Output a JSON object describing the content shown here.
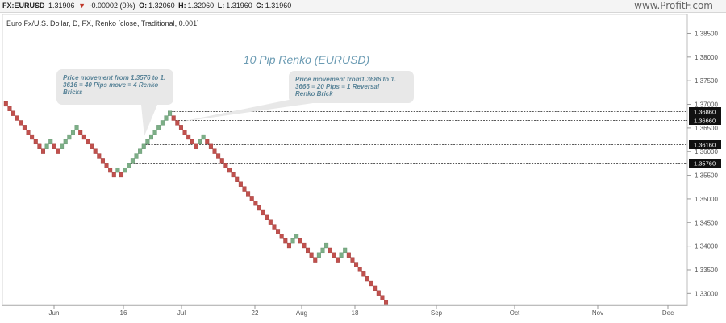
{
  "header": {
    "symbol": "FX:EURUSD",
    "last": "1.31906",
    "change": "-0.00002 (0%)",
    "open_label": "O:",
    "open": "1.32060",
    "high_label": "H:",
    "high": "1.32060",
    "low_label": "L:",
    "low": "1.31960",
    "close_label": "C:",
    "close": "1.31960",
    "watermark": "www.ProfitF.com"
  },
  "chart_data": {
    "type": "renko",
    "subtitle": "Euro Fx/U.S. Dollar, D, FX, Renko [close, Traditional, 0.001]",
    "title": "10 Pip Renko (EURUSD)",
    "brick_size": 0.001,
    "up_color": "#7cae86",
    "down_color": "#c0504d",
    "ylim": [
      1.3275,
      1.389
    ],
    "y_ticks": [
      "1.38500",
      "1.38000",
      "1.37500",
      "1.37000",
      "1.36500",
      "1.36000",
      "1.35500",
      "1.35000",
      "1.34500",
      "1.34000",
      "1.33500",
      "1.33000"
    ],
    "x_ticks": [
      "Jun",
      "16",
      "Jul",
      "22",
      "Aug",
      "18",
      "Sep",
      "Oct",
      "Nov",
      "Dec"
    ],
    "bricks": [
      {
        "dir": "down",
        "top": 1.3706
      },
      {
        "dir": "down",
        "top": 1.3696
      },
      {
        "dir": "down",
        "top": 1.3686
      },
      {
        "dir": "down",
        "top": 1.3676
      },
      {
        "dir": "down",
        "top": 1.3666
      },
      {
        "dir": "down",
        "top": 1.3656
      },
      {
        "dir": "down",
        "top": 1.3646
      },
      {
        "dir": "down",
        "top": 1.3636
      },
      {
        "dir": "down",
        "top": 1.3626
      },
      {
        "dir": "down",
        "top": 1.3616
      },
      {
        "dir": "down",
        "top": 1.3606
      },
      {
        "dir": "up",
        "top": 1.3616
      },
      {
        "dir": "up",
        "top": 1.3626
      },
      {
        "dir": "down",
        "top": 1.3616
      },
      {
        "dir": "down",
        "top": 1.3606
      },
      {
        "dir": "up",
        "top": 1.3616
      },
      {
        "dir": "up",
        "top": 1.3626
      },
      {
        "dir": "up",
        "top": 1.3636
      },
      {
        "dir": "up",
        "top": 1.3646
      },
      {
        "dir": "up",
        "top": 1.3656
      },
      {
        "dir": "down",
        "top": 1.3646
      },
      {
        "dir": "down",
        "top": 1.3636
      },
      {
        "dir": "down",
        "top": 1.3626
      },
      {
        "dir": "down",
        "top": 1.3616
      },
      {
        "dir": "down",
        "top": 1.3606
      },
      {
        "dir": "down",
        "top": 1.3596
      },
      {
        "dir": "down",
        "top": 1.3586
      },
      {
        "dir": "down",
        "top": 1.3576
      },
      {
        "dir": "down",
        "top": 1.3566
      },
      {
        "dir": "down",
        "top": 1.3556
      },
      {
        "dir": "up",
        "top": 1.3566
      },
      {
        "dir": "down",
        "top": 1.3556
      },
      {
        "dir": "up",
        "top": 1.3566
      },
      {
        "dir": "up",
        "top": 1.3576
      },
      {
        "dir": "up",
        "top": 1.3586
      },
      {
        "dir": "up",
        "top": 1.3596
      },
      {
        "dir": "up",
        "top": 1.3606
      },
      {
        "dir": "up",
        "top": 1.3616
      },
      {
        "dir": "up",
        "top": 1.3626
      },
      {
        "dir": "up",
        "top": 1.3636
      },
      {
        "dir": "up",
        "top": 1.3646
      },
      {
        "dir": "up",
        "top": 1.3656
      },
      {
        "dir": "up",
        "top": 1.3666
      },
      {
        "dir": "up",
        "top": 1.3676
      },
      {
        "dir": "up",
        "top": 1.3686
      },
      {
        "dir": "down",
        "top": 1.3676
      },
      {
        "dir": "down",
        "top": 1.3666
      },
      {
        "dir": "down",
        "top": 1.3656
      },
      {
        "dir": "down",
        "top": 1.3646
      },
      {
        "dir": "down",
        "top": 1.3636
      },
      {
        "dir": "down",
        "top": 1.3626
      },
      {
        "dir": "down",
        "top": 1.3616
      },
      {
        "dir": "up",
        "top": 1.3626
      },
      {
        "dir": "up",
        "top": 1.3636
      },
      {
        "dir": "down",
        "top": 1.3626
      },
      {
        "dir": "down",
        "top": 1.3616
      },
      {
        "dir": "down",
        "top": 1.3606
      },
      {
        "dir": "down",
        "top": 1.3596
      },
      {
        "dir": "down",
        "top": 1.3586
      },
      {
        "dir": "down",
        "top": 1.3576
      },
      {
        "dir": "down",
        "top": 1.3566
      },
      {
        "dir": "down",
        "top": 1.3556
      },
      {
        "dir": "down",
        "top": 1.3546
      },
      {
        "dir": "down",
        "top": 1.3536
      },
      {
        "dir": "down",
        "top": 1.3526
      },
      {
        "dir": "down",
        "top": 1.3516
      },
      {
        "dir": "down",
        "top": 1.3506
      },
      {
        "dir": "down",
        "top": 1.3496
      },
      {
        "dir": "down",
        "top": 1.3486
      },
      {
        "dir": "down",
        "top": 1.3476
      },
      {
        "dir": "down",
        "top": 1.3466
      },
      {
        "dir": "down",
        "top": 1.3456
      },
      {
        "dir": "down",
        "top": 1.3446
      },
      {
        "dir": "down",
        "top": 1.3436
      },
      {
        "dir": "down",
        "top": 1.3426
      },
      {
        "dir": "down",
        "top": 1.3416
      },
      {
        "dir": "down",
        "top": 1.3406
      },
      {
        "dir": "up",
        "top": 1.3416
      },
      {
        "dir": "up",
        "top": 1.3426
      },
      {
        "dir": "down",
        "top": 1.3416
      },
      {
        "dir": "down",
        "top": 1.3406
      },
      {
        "dir": "down",
        "top": 1.3396
      },
      {
        "dir": "down",
        "top": 1.3386
      },
      {
        "dir": "down",
        "top": 1.3376
      },
      {
        "dir": "up",
        "top": 1.3386
      },
      {
        "dir": "up",
        "top": 1.3396
      },
      {
        "dir": "up",
        "top": 1.3406
      },
      {
        "dir": "down",
        "top": 1.3396
      },
      {
        "dir": "down",
        "top": 1.3386
      },
      {
        "dir": "down",
        "top": 1.3376
      },
      {
        "dir": "up",
        "top": 1.3386
      },
      {
        "dir": "up",
        "top": 1.3396
      },
      {
        "dir": "down",
        "top": 1.3386
      },
      {
        "dir": "down",
        "top": 1.3376
      },
      {
        "dir": "down",
        "top": 1.3366
      },
      {
        "dir": "down",
        "top": 1.3356
      },
      {
        "dir": "down",
        "top": 1.3346
      },
      {
        "dir": "down",
        "top": 1.3336
      },
      {
        "dir": "down",
        "top": 1.3326
      },
      {
        "dir": "down",
        "top": 1.3316
      },
      {
        "dir": "down",
        "top": 1.3306
      },
      {
        "dir": "down",
        "top": 1.3296
      },
      {
        "dir": "down",
        "top": 1.3286
      }
    ],
    "levels": [
      {
        "value": 1.3686,
        "label": "1.36860",
        "start_brick": 44
      },
      {
        "value": 1.3666,
        "label": "1.36660",
        "start_brick": 46
      },
      {
        "value": 1.3616,
        "label": "1.36160",
        "start_brick": 38
      },
      {
        "value": 1.3576,
        "label": "1.35760",
        "start_brick": 34
      }
    ],
    "annotations": [
      {
        "lines": [
          "Price movement from 1.3576 to 1.",
          "3616 = 40 Pips move = 4 Renko",
          "Bricks"
        ],
        "target_brick": 38
      },
      {
        "lines": [
          "Price movement from1.3686 to 1.",
          "3666 = 20 Pips = 1 Reversal",
          "Renko Brick"
        ],
        "target_brick": 45
      }
    ]
  }
}
